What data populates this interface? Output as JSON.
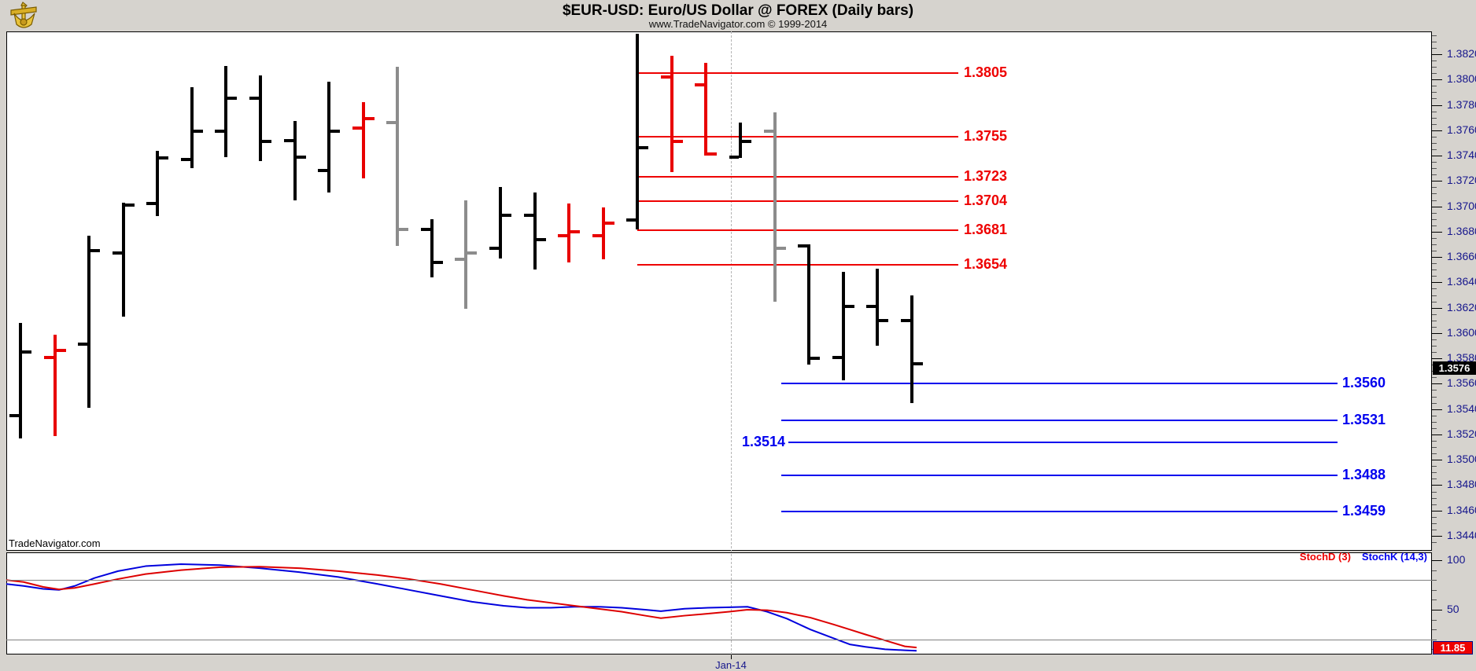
{
  "header": {
    "title": "$EUR-USD:  Euro/US Dollar @ FOREX  (Daily bars)",
    "subtitle": "www.TradeNavigator.com © 1999-2014",
    "logo_icon": "sextant-logo"
  },
  "watermark": "TradeNavigator.com",
  "price_axis": {
    "labels": [
      "1.3820",
      "1.3800",
      "1.3780",
      "1.3760",
      "1.3740",
      "1.3720",
      "1.3700",
      "1.3680",
      "1.3660",
      "1.3640",
      "1.3620",
      "1.3600",
      "1.3580",
      "1.3560",
      "1.3540",
      "1.3520",
      "1.3500",
      "1.3480",
      "1.3460",
      "1.3440"
    ],
    "last_price_badge": "1.3576"
  },
  "stoch_axis": {
    "labels": [
      "100",
      "50"
    ],
    "value_badge": "11.85"
  },
  "x_axis": {
    "date_label": "Jan-14"
  },
  "legend": {
    "stoch_d": "StochD (3)",
    "stoch_k": "StochK (14,3)"
  },
  "colors": {
    "background": "#d6d3ce",
    "plot": "#ffffff",
    "axis_text": "#16168c",
    "bar_black": "#000000",
    "bar_red": "#e80000",
    "bar_gray": "#8c8c8c",
    "resistance": "#ee0000",
    "support": "#0000ee",
    "stoch_d": "#dd0000",
    "stoch_k": "#0000dd",
    "price_badge_bg": "#000000",
    "stoch_badge_bg": "#ee0000"
  },
  "chart_data": {
    "type": "bar",
    "subtype": "ohlc-daily",
    "symbol": "$EUR-USD",
    "description": "Euro/US Dollar @ FOREX",
    "interval": "Daily bars",
    "ylim": [
      1.3429,
      1.3838
    ],
    "last_price": 1.3576,
    "date_marker": "Jan-14",
    "bars": [
      {
        "x": 26,
        "color": "black",
        "o": 1.3535,
        "h": 1.3608,
        "l": 1.3517,
        "c": 1.3585
      },
      {
        "x": 70,
        "color": "red",
        "o": 1.3581,
        "h": 1.3599,
        "l": 1.3519,
        "c": 1.3586
      },
      {
        "x": 113,
        "color": "black",
        "o": 1.3591,
        "h": 1.3677,
        "l": 1.3541,
        "c": 1.3665
      },
      {
        "x": 157,
        "color": "black",
        "o": 1.3663,
        "h": 1.3703,
        "l": 1.3613,
        "c": 1.3701
      },
      {
        "x": 200,
        "color": "black",
        "o": 1.3702,
        "h": 1.3744,
        "l": 1.3692,
        "c": 1.3738
      },
      {
        "x": 244,
        "color": "black",
        "o": 1.3737,
        "h": 1.3794,
        "l": 1.373,
        "c": 1.3759
      },
      {
        "x": 287,
        "color": "black",
        "o": 1.3759,
        "h": 1.3811,
        "l": 1.3739,
        "c": 1.3785
      },
      {
        "x": 331,
        "color": "black",
        "o": 1.3785,
        "h": 1.3803,
        "l": 1.3736,
        "c": 1.3751
      },
      {
        "x": 375,
        "color": "black",
        "o": 1.3752,
        "h": 1.3767,
        "l": 1.3705,
        "c": 1.3739
      },
      {
        "x": 418,
        "color": "black",
        "o": 1.3728,
        "h": 1.3798,
        "l": 1.3711,
        "c": 1.3759
      },
      {
        "x": 462,
        "color": "red",
        "o": 1.3762,
        "h": 1.3782,
        "l": 1.3722,
        "c": 1.3769
      },
      {
        "x": 505,
        "color": "gray",
        "o": 1.3766,
        "h": 1.381,
        "l": 1.3669,
        "c": 1.3682
      },
      {
        "x": 549,
        "color": "black",
        "o": 1.3682,
        "h": 1.369,
        "l": 1.3644,
        "c": 1.3656
      },
      {
        "x": 592,
        "color": "gray",
        "o": 1.3658,
        "h": 1.3705,
        "l": 1.3619,
        "c": 1.3663
      },
      {
        "x": 636,
        "color": "black",
        "o": 1.3667,
        "h": 1.3715,
        "l": 1.3659,
        "c": 1.3693
      },
      {
        "x": 680,
        "color": "black",
        "o": 1.3693,
        "h": 1.3711,
        "l": 1.365,
        "c": 1.3674
      },
      {
        "x": 723,
        "color": "red",
        "o": 1.3677,
        "h": 1.3702,
        "l": 1.3656,
        "c": 1.368
      },
      {
        "x": 767,
        "color": "red",
        "o": 1.3677,
        "h": 1.3699,
        "l": 1.3658,
        "c": 1.3687
      },
      {
        "x": 810,
        "color": "black",
        "o": 1.3689,
        "h": 1.3836,
        "l": 1.3682,
        "c": 1.3746
      },
      {
        "x": 854,
        "color": "red",
        "o": 1.3802,
        "h": 1.3819,
        "l": 1.3727,
        "c": 1.3751
      },
      {
        "x": 897,
        "color": "red",
        "o": 1.3796,
        "h": 1.3813,
        "l": 1.374,
        "c": 1.3741
      },
      {
        "x": 941,
        "color": "black",
        "o": 1.3739,
        "h": 1.3766,
        "l": 1.3738,
        "c": 1.3751
      },
      {
        "x": 985,
        "color": "gray",
        "o": 1.3759,
        "h": 1.3774,
        "l": 1.3625,
        "c": 1.3667
      },
      {
        "x": 1028,
        "color": "black",
        "o": 1.3669,
        "h": 1.367,
        "l": 1.3575,
        "c": 1.358
      },
      {
        "x": 1072,
        "color": "black",
        "o": 1.3581,
        "h": 1.3648,
        "l": 1.3563,
        "c": 1.3621
      },
      {
        "x": 1115,
        "color": "black",
        "o": 1.3621,
        "h": 1.3651,
        "l": 1.359,
        "c": 1.361
      },
      {
        "x": 1159,
        "color": "black",
        "o": 1.361,
        "h": 1.363,
        "l": 1.3545,
        "c": 1.3576
      }
    ],
    "resistance_levels": [
      {
        "price": 1.3805,
        "label": "1.3805"
      },
      {
        "price": 1.3755,
        "label": "1.3755"
      },
      {
        "price": 1.3723,
        "label": "1.3723"
      },
      {
        "price": 1.3704,
        "label": "1.3704"
      },
      {
        "price": 1.3681,
        "label": "1.3681"
      },
      {
        "price": 1.3654,
        "label": "1.3654"
      }
    ],
    "support_levels": [
      {
        "price": 1.356,
        "label": "1.3560",
        "label_side": "right"
      },
      {
        "price": 1.3531,
        "label": "1.3531",
        "label_side": "right"
      },
      {
        "price": 1.3514,
        "label": "1.3514",
        "label_side": "left"
      },
      {
        "price": 1.3488,
        "label": "1.3488",
        "label_side": "right"
      },
      {
        "price": 1.3459,
        "label": "1.3459",
        "label_side": "right"
      }
    ],
    "indicators": [
      {
        "name": "StochK (14,3)",
        "color_key": "stoch_k",
        "points": [
          [
            8,
            76
          ],
          [
            30,
            74
          ],
          [
            55,
            71
          ],
          [
            75,
            70
          ],
          [
            95,
            74
          ],
          [
            120,
            82
          ],
          [
            150,
            89
          ],
          [
            185,
            94
          ],
          [
            230,
            96
          ],
          [
            280,
            95
          ],
          [
            330,
            92
          ],
          [
            380,
            88
          ],
          [
            430,
            83
          ],
          [
            480,
            76
          ],
          [
            520,
            70
          ],
          [
            560,
            64
          ],
          [
            600,
            58
          ],
          [
            640,
            54
          ],
          [
            670,
            52
          ],
          [
            700,
            52
          ],
          [
            730,
            53
          ],
          [
            760,
            53
          ],
          [
            790,
            52
          ],
          [
            820,
            50
          ],
          [
            840,
            48.5
          ],
          [
            870,
            51
          ],
          [
            900,
            52
          ],
          [
            927,
            52.5
          ],
          [
            950,
            53
          ],
          [
            975,
            48
          ],
          [
            1000,
            41
          ],
          [
            1030,
            30
          ],
          [
            1060,
            21
          ],
          [
            1080,
            15
          ],
          [
            1100,
            12.5
          ],
          [
            1125,
            10
          ],
          [
            1150,
            9
          ],
          [
            1165,
            8.5
          ]
        ]
      },
      {
        "name": "StochD (3)",
        "color_key": "stoch_d",
        "last_value": 11.85,
        "points": [
          [
            8,
            80
          ],
          [
            30,
            78
          ],
          [
            55,
            73
          ],
          [
            75,
            70.5
          ],
          [
            95,
            72
          ],
          [
            120,
            76
          ],
          [
            150,
            81
          ],
          [
            185,
            86
          ],
          [
            230,
            90
          ],
          [
            280,
            93
          ],
          [
            330,
            93.5
          ],
          [
            380,
            92
          ],
          [
            430,
            89
          ],
          [
            480,
            85
          ],
          [
            520,
            81
          ],
          [
            560,
            76
          ],
          [
            600,
            70
          ],
          [
            640,
            64
          ],
          [
            670,
            60
          ],
          [
            700,
            57
          ],
          [
            730,
            54
          ],
          [
            760,
            51
          ],
          [
            790,
            48
          ],
          [
            820,
            44
          ],
          [
            840,
            41.5
          ],
          [
            870,
            44
          ],
          [
            900,
            46
          ],
          [
            927,
            48
          ],
          [
            950,
            50
          ],
          [
            975,
            49.5
          ],
          [
            1000,
            47
          ],
          [
            1030,
            42
          ],
          [
            1060,
            35
          ],
          [
            1080,
            30
          ],
          [
            1100,
            25
          ],
          [
            1125,
            19
          ],
          [
            1150,
            13
          ],
          [
            1165,
            11.85
          ]
        ]
      }
    ],
    "stoch_bands": [
      80,
      20
    ],
    "stoch_range": [
      0,
      100
    ]
  }
}
